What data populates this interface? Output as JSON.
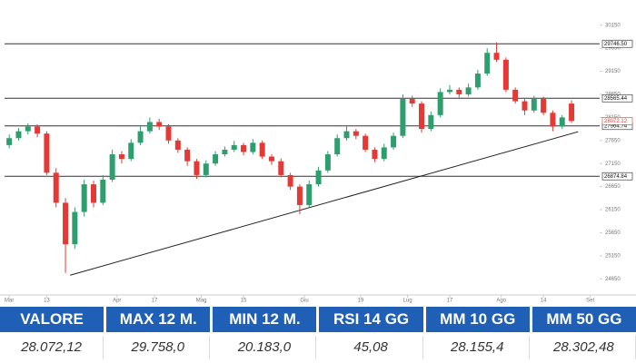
{
  "chart_data": {
    "type": "candlestick",
    "candles": [
      [
        27550,
        27780,
        27480,
        27700
      ],
      [
        27700,
        27920,
        27650,
        27850
      ],
      [
        27850,
        28020,
        27780,
        27950
      ],
      [
        27950,
        28000,
        27720,
        27800
      ],
      [
        27800,
        27850,
        26900,
        26950
      ],
      [
        26950,
        27050,
        26200,
        26300
      ],
      [
        26300,
        26400,
        24780,
        25400
      ],
      [
        25400,
        26200,
        25300,
        26100
      ],
      [
        26100,
        26800,
        26000,
        26700
      ],
      [
        26700,
        26780,
        26200,
        26300
      ],
      [
        26300,
        26900,
        26250,
        26800
      ],
      [
        26800,
        27450,
        26750,
        27350
      ],
      [
        27350,
        27420,
        27150,
        27250
      ],
      [
        27250,
        27680,
        27200,
        27600
      ],
      [
        27600,
        27950,
        27550,
        27850
      ],
      [
        27850,
        28150,
        27800,
        28050
      ],
      [
        28050,
        28120,
        27880,
        27950
      ],
      [
        27950,
        28000,
        27580,
        27650
      ],
      [
        27650,
        27700,
        27380,
        27450
      ],
      [
        27450,
        27500,
        27100,
        27200
      ],
      [
        27200,
        27250,
        26820,
        26900
      ],
      [
        26900,
        27220,
        26850,
        27150
      ],
      [
        27150,
        27420,
        27100,
        27350
      ],
      [
        27350,
        27520,
        27300,
        27450
      ],
      [
        27450,
        27640,
        27400,
        27550
      ],
      [
        27550,
        27600,
        27330,
        27400
      ],
      [
        27400,
        27680,
        27350,
        27600
      ],
      [
        27600,
        27650,
        27250,
        27300
      ],
      [
        27300,
        27350,
        27120,
        27200
      ],
      [
        27200,
        27260,
        26850,
        26900
      ],
      [
        26900,
        26950,
        26580,
        26650
      ],
      [
        26650,
        26700,
        26050,
        26250
      ],
      [
        26250,
        26780,
        26200,
        26700
      ],
      [
        26700,
        27080,
        26650,
        27000
      ],
      [
        27000,
        27420,
        26950,
        27350
      ],
      [
        27350,
        27780,
        27300,
        27700
      ],
      [
        27700,
        27950,
        27650,
        27850
      ],
      [
        27850,
        27900,
        27680,
        27750
      ],
      [
        27750,
        27800,
        27400,
        27450
      ],
      [
        27450,
        27500,
        27180,
        27250
      ],
      [
        27250,
        27580,
        27200,
        27500
      ],
      [
        27500,
        27820,
        27450,
        27750
      ],
      [
        27750,
        28650,
        27700,
        28550
      ],
      [
        28550,
        28620,
        28380,
        28450
      ],
      [
        28450,
        28500,
        27820,
        27900
      ],
      [
        27900,
        28280,
        27850,
        28200
      ],
      [
        28200,
        28780,
        28150,
        28700
      ],
      [
        28700,
        28850,
        28650,
        28750
      ],
      [
        28750,
        28800,
        28580,
        28650
      ],
      [
        28650,
        28880,
        28600,
        28800
      ],
      [
        28800,
        29180,
        28750,
        29100
      ],
      [
        29100,
        29650,
        29050,
        29550
      ],
      [
        29550,
        29780,
        29350,
        29400
      ],
      [
        29400,
        29450,
        28700,
        28750
      ],
      [
        28750,
        28800,
        28450,
        28500
      ],
      [
        28500,
        28550,
        28200,
        28300
      ],
      [
        28300,
        28620,
        28250,
        28550
      ],
      [
        28550,
        28600,
        28200,
        28250
      ],
      [
        28250,
        28300,
        27850,
        27950
      ],
      [
        27950,
        28200,
        27900,
        28150
      ],
      [
        28450,
        28520,
        28030,
        28072.12
      ]
    ],
    "up_color": "#2e9e6e",
    "down_color": "#e53935",
    "xlim": [
      -0.5,
      63
    ],
    "xticks": [
      {
        "value": 0,
        "label": "Mar"
      },
      {
        "value": 4,
        "label": "13"
      },
      {
        "value": 11.5,
        "label": "Apr"
      },
      {
        "value": 15.5,
        "label": "17"
      },
      {
        "value": 20.5,
        "label": "Mag"
      },
      {
        "value": 25,
        "label": "15"
      },
      {
        "value": 31.5,
        "label": "Giu"
      },
      {
        "value": 37.5,
        "label": "19"
      },
      {
        "value": 42.5,
        "label": "Lug"
      },
      {
        "value": 47,
        "label": "17"
      },
      {
        "value": 52.5,
        "label": "Ago"
      },
      {
        "value": 57,
        "label": "14"
      },
      {
        "value": 62,
        "label": "Set"
      }
    ],
    "ylim": [
      24400,
      30400
    ],
    "yticks": [
      24650,
      25150,
      25650,
      26150,
      26650,
      27150,
      27650,
      28150,
      28650,
      29150,
      29650,
      30150
    ],
    "levels": [
      29746.5,
      28565.44,
      27964.74,
      26874.84
    ],
    "level_labels": [
      "29746.50",
      "28565.44",
      "27964.74",
      "26874.84"
    ],
    "last_price": 28072.12,
    "trendline": {
      "x": [
        6.5,
        60.7
      ],
      "y": [
        24730,
        27840
      ]
    }
  },
  "table": {
    "headers": [
      "VALORE",
      "MAX 12 M.",
      "MIN 12 M.",
      "RSI 14 GG",
      "MM 10 GG",
      "MM 50 GG"
    ],
    "values": [
      "28.072,12",
      "29.758,0",
      "20.183,0",
      "45,08",
      "28.155,4",
      "28.302,48"
    ]
  }
}
